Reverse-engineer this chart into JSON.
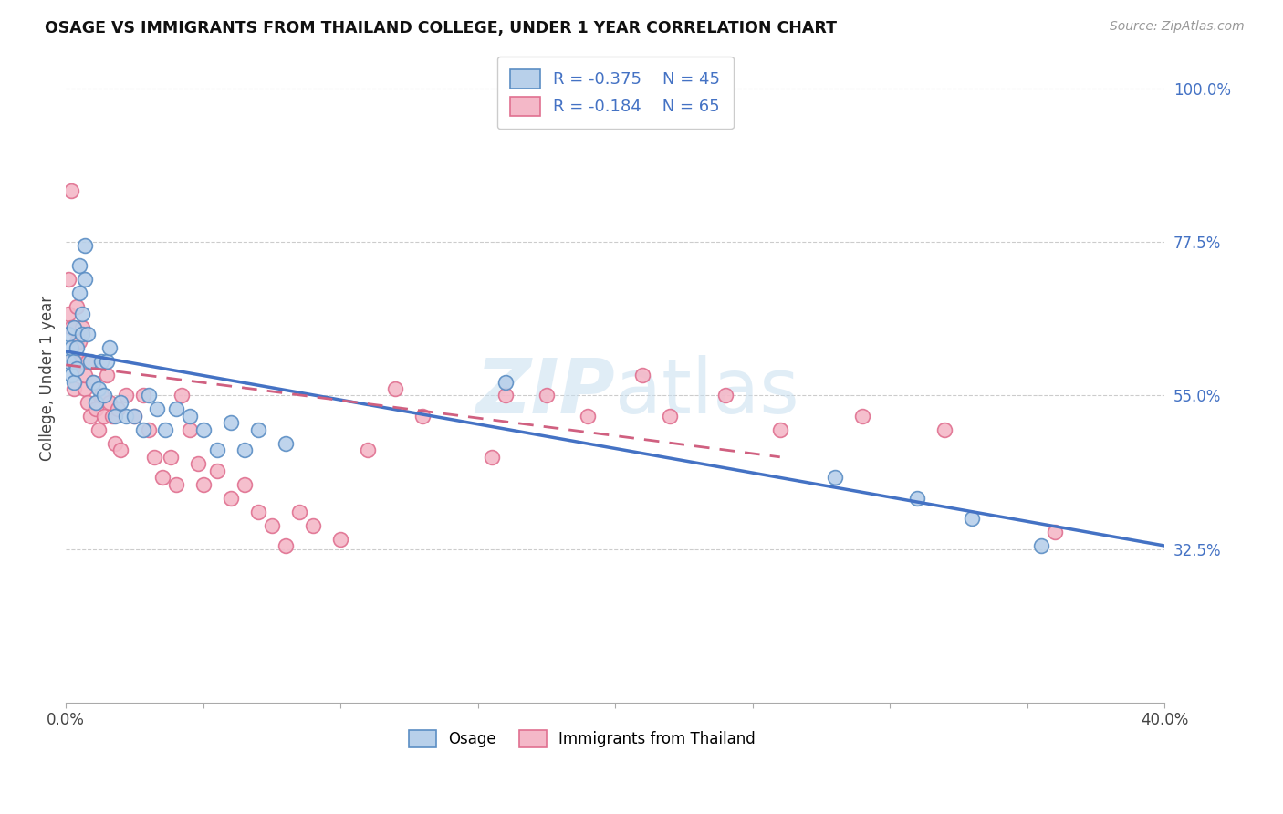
{
  "title": "OSAGE VS IMMIGRANTS FROM THAILAND COLLEGE, UNDER 1 YEAR CORRELATION CHART",
  "source": "Source: ZipAtlas.com",
  "ylabel": "College, Under 1 year",
  "xlim": [
    0.0,
    0.4
  ],
  "ylim": [
    0.1,
    1.05
  ],
  "xticks": [
    0.0,
    0.05,
    0.1,
    0.15,
    0.2,
    0.25,
    0.3,
    0.35,
    0.4
  ],
  "xticklabels": [
    "0.0%",
    "",
    "",
    "",
    "",
    "",
    "",
    "",
    "40.0%"
  ],
  "ytick_labels_right": [
    "32.5%",
    "55.0%",
    "77.5%",
    "100.0%"
  ],
  "ytick_values_right": [
    0.325,
    0.55,
    0.775,
    1.0
  ],
  "grid_color": "#cccccc",
  "background_color": "#ffffff",
  "blue_fill": "#b8d0ea",
  "pink_fill": "#f4b8c8",
  "blue_edge": "#5b8ec4",
  "pink_edge": "#e07090",
  "blue_line_color": "#4472c4",
  "pink_line_color": "#d06080",
  "watermark": "ZIPatlas",
  "legend_label_blue": "Osage",
  "legend_label_pink": "Immigrants from Thailand",
  "osage_x": [
    0.001,
    0.001,
    0.002,
    0.002,
    0.003,
    0.003,
    0.003,
    0.004,
    0.004,
    0.005,
    0.005,
    0.006,
    0.006,
    0.007,
    0.007,
    0.008,
    0.009,
    0.01,
    0.011,
    0.012,
    0.013,
    0.014,
    0.015,
    0.016,
    0.018,
    0.02,
    0.022,
    0.025,
    0.028,
    0.03,
    0.033,
    0.036,
    0.04,
    0.045,
    0.05,
    0.055,
    0.06,
    0.065,
    0.07,
    0.08,
    0.16,
    0.28,
    0.31,
    0.33,
    0.355
  ],
  "osage_y": [
    0.64,
    0.6,
    0.62,
    0.58,
    0.65,
    0.6,
    0.57,
    0.62,
    0.59,
    0.74,
    0.7,
    0.67,
    0.64,
    0.77,
    0.72,
    0.64,
    0.6,
    0.57,
    0.54,
    0.56,
    0.6,
    0.55,
    0.6,
    0.62,
    0.52,
    0.54,
    0.52,
    0.52,
    0.5,
    0.55,
    0.53,
    0.5,
    0.53,
    0.52,
    0.5,
    0.47,
    0.51,
    0.47,
    0.5,
    0.48,
    0.57,
    0.43,
    0.4,
    0.37,
    0.33
  ],
  "thai_x": [
    0.001,
    0.001,
    0.002,
    0.002,
    0.002,
    0.003,
    0.003,
    0.003,
    0.004,
    0.004,
    0.005,
    0.005,
    0.006,
    0.006,
    0.007,
    0.007,
    0.008,
    0.008,
    0.009,
    0.01,
    0.011,
    0.012,
    0.013,
    0.014,
    0.015,
    0.016,
    0.017,
    0.018,
    0.019,
    0.02,
    0.022,
    0.025,
    0.028,
    0.03,
    0.032,
    0.035,
    0.038,
    0.04,
    0.042,
    0.045,
    0.048,
    0.05,
    0.055,
    0.06,
    0.065,
    0.07,
    0.075,
    0.08,
    0.085,
    0.09,
    0.1,
    0.11,
    0.12,
    0.13,
    0.155,
    0.16,
    0.175,
    0.19,
    0.21,
    0.22,
    0.24,
    0.26,
    0.29,
    0.32,
    0.36
  ],
  "thai_y": [
    0.72,
    0.67,
    0.85,
    0.65,
    0.6,
    0.65,
    0.6,
    0.56,
    0.68,
    0.63,
    0.6,
    0.63,
    0.65,
    0.6,
    0.56,
    0.58,
    0.54,
    0.6,
    0.52,
    0.57,
    0.53,
    0.5,
    0.55,
    0.52,
    0.58,
    0.54,
    0.52,
    0.48,
    0.53,
    0.47,
    0.55,
    0.52,
    0.55,
    0.5,
    0.46,
    0.43,
    0.46,
    0.42,
    0.55,
    0.5,
    0.45,
    0.42,
    0.44,
    0.4,
    0.42,
    0.38,
    0.36,
    0.33,
    0.38,
    0.36,
    0.34,
    0.47,
    0.56,
    0.52,
    0.46,
    0.55,
    0.55,
    0.52,
    0.58,
    0.52,
    0.55,
    0.5,
    0.52,
    0.5,
    0.35
  ],
  "blue_trend_x": [
    0.0,
    0.4
  ],
  "blue_trend_y": [
    0.615,
    0.33
  ],
  "pink_trend_x": [
    0.0,
    0.26
  ],
  "pink_trend_y": [
    0.595,
    0.46
  ]
}
